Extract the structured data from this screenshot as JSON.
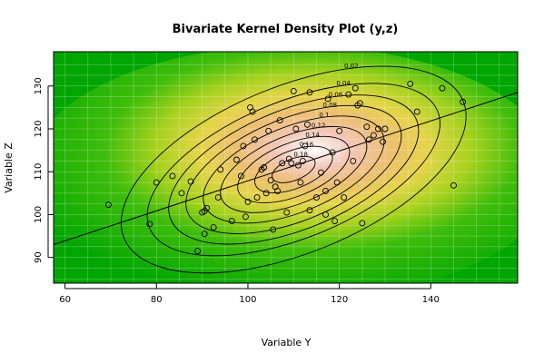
{
  "chart_data": {
    "type": "contour",
    "title": "Bivariate Kernel Density Plot (y,z)",
    "xlabel": "Variable Y",
    "ylabel": "Variable Z",
    "xlim": [
      57.5,
      159
    ],
    "ylim": [
      84,
      138
    ],
    "x_ticks": [
      60,
      80,
      100,
      120,
      140
    ],
    "y_ticks": [
      90,
      100,
      110,
      120,
      130
    ],
    "grid": true,
    "density_fill": "heatmap (green low to white high)",
    "contour_levels": [
      "0.02",
      "0.04",
      "0.06",
      "0.08",
      "0.1",
      "0.12",
      "0.14",
      "0.16",
      "0.18"
    ],
    "regression_line": {
      "x": [
        57.5,
        159
      ],
      "y": [
        93,
        128.5
      ]
    },
    "points": [
      [
        69.5,
        102.3
      ],
      [
        78.5,
        97.8
      ],
      [
        80,
        107.5
      ],
      [
        83.5,
        109
      ],
      [
        85.5,
        105
      ],
      [
        87.5,
        107.7
      ],
      [
        89,
        91.5
      ],
      [
        90,
        100.5
      ],
      [
        90.5,
        95.5
      ],
      [
        91,
        101.5
      ],
      [
        90.5,
        100.8
      ],
      [
        92.5,
        97
      ],
      [
        93.5,
        104
      ],
      [
        94,
        110.5
      ],
      [
        96.5,
        98.5
      ],
      [
        97.5,
        112.8
      ],
      [
        98.5,
        109
      ],
      [
        99,
        116
      ],
      [
        99.5,
        99.5
      ],
      [
        100,
        103
      ],
      [
        100.5,
        125
      ],
      [
        101,
        124
      ],
      [
        101.5,
        117.5
      ],
      [
        102,
        104
      ],
      [
        103,
        110.5
      ],
      [
        103.5,
        111
      ],
      [
        104,
        105
      ],
      [
        104.5,
        119.5
      ],
      [
        105,
        108
      ],
      [
        105.5,
        96.5
      ],
      [
        106,
        106.5
      ],
      [
        106.5,
        105.5
      ],
      [
        107,
        122
      ],
      [
        107.5,
        112
      ],
      [
        108.5,
        100.5
      ],
      [
        109,
        113
      ],
      [
        109.5,
        112
      ],
      [
        110,
        128.8
      ],
      [
        110.5,
        120
      ],
      [
        111,
        111.5
      ],
      [
        111.5,
        107.5
      ],
      [
        112,
        112.5
      ],
      [
        112.5,
        116
      ],
      [
        113,
        121
      ],
      [
        113.5,
        128.5
      ],
      [
        113.5,
        101
      ],
      [
        115,
        104
      ],
      [
        116,
        109.8
      ],
      [
        117,
        100
      ],
      [
        117,
        105.5
      ],
      [
        117.5,
        127
      ],
      [
        118.5,
        114.5
      ],
      [
        119,
        98.5
      ],
      [
        119.5,
        107.5
      ],
      [
        120,
        119.5
      ],
      [
        121,
        104
      ],
      [
        122,
        128
      ],
      [
        123,
        112.5
      ],
      [
        123.5,
        129.5
      ],
      [
        124,
        125.5
      ],
      [
        124.5,
        126
      ],
      [
        125,
        98
      ],
      [
        126,
        120.5
      ],
      [
        126.5,
        117.5
      ],
      [
        127.5,
        118.5
      ],
      [
        128.5,
        120
      ],
      [
        129.5,
        117
      ],
      [
        130,
        120
      ],
      [
        135.5,
        130.5
      ],
      [
        137,
        124
      ],
      [
        142.5,
        129.5
      ],
      [
        145,
        106.8
      ],
      [
        147,
        126.3
      ]
    ]
  }
}
